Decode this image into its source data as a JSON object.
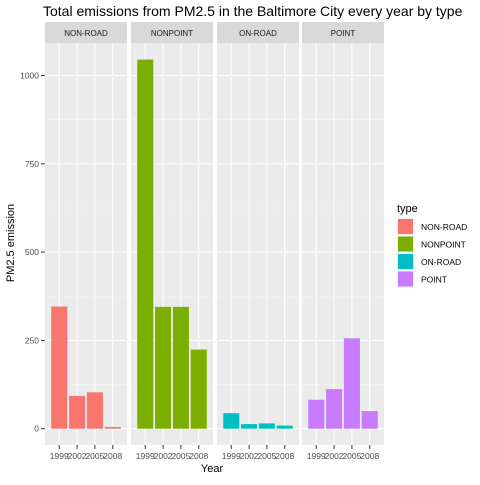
{
  "chart_data": {
    "type": "bar",
    "title": "Total emissions from PM2.5 in the Baltimore City every year by type",
    "xlabel": "Year",
    "ylabel": "PM2.5 emission",
    "ylim": [
      0,
      1100
    ],
    "yticks": [
      0,
      250,
      500,
      750,
      1000
    ],
    "categories": [
      "1999",
      "2002",
      "2005",
      "2008"
    ],
    "grid": true,
    "legend_position": "right",
    "legend_title": "type",
    "facets": [
      {
        "name": "NON-ROAD",
        "color": "#F8766D",
        "values": [
          346,
          93,
          103,
          5
        ]
      },
      {
        "name": "NONPOINT",
        "color": "#7CAE00",
        "values": [
          1045,
          345,
          345,
          224
        ]
      },
      {
        "name": "ON-ROAD",
        "color": "#00BFC4",
        "values": [
          44,
          13,
          15,
          9
        ]
      },
      {
        "name": "POINT",
        "color": "#C77CFF",
        "values": [
          82,
          112,
          256,
          50
        ]
      }
    ]
  }
}
